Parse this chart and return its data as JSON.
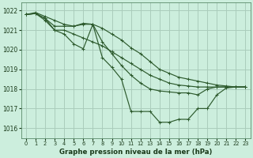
{
  "title": "Graphe pression niveau de la mer (hPa)",
  "background_color": "#cceedd",
  "grid_color": "#aaccbb",
  "line_color": "#2d5a2d",
  "xlim": [
    -0.5,
    23.5
  ],
  "ylim": [
    1015.5,
    1022.4
  ],
  "yticks": [
    1016,
    1017,
    1018,
    1019,
    1020,
    1021,
    1022
  ],
  "xticks": [
    0,
    1,
    2,
    3,
    4,
    5,
    6,
    7,
    8,
    9,
    10,
    11,
    12,
    13,
    14,
    15,
    16,
    17,
    18,
    19,
    20,
    21,
    22,
    23
  ],
  "series": [
    {
      "x": [
        0,
        1,
        2,
        3,
        4,
        5,
        6,
        7,
        8,
        9,
        10,
        11,
        12,
        13,
        14,
        15,
        16,
        17,
        18,
        19,
        20,
        21,
        22,
        23
      ],
      "y": [
        1021.8,
        1021.9,
        1021.7,
        1021.5,
        1021.3,
        1021.2,
        1021.3,
        1021.3,
        1021.1,
        1020.8,
        1020.5,
        1020.1,
        1019.8,
        1019.4,
        1019.0,
        1018.8,
        1018.6,
        1018.5,
        1018.4,
        1018.3,
        1018.2,
        1018.15,
        1018.1,
        1018.1
      ]
    },
    {
      "x": [
        0,
        1,
        2,
        3,
        4,
        5,
        6,
        7,
        8,
        9,
        10,
        11,
        12,
        13,
        14,
        15,
        16,
        17,
        18,
        19,
        20,
        21,
        22,
        23
      ],
      "y": [
        1021.8,
        1021.85,
        1021.6,
        1021.0,
        1021.0,
        1020.8,
        1020.6,
        1020.4,
        1020.2,
        1019.9,
        1019.6,
        1019.3,
        1019.0,
        1018.7,
        1018.5,
        1018.3,
        1018.2,
        1018.15,
        1018.1,
        1018.1,
        1018.1,
        1018.1,
        1018.1,
        1018.1
      ]
    },
    {
      "x": [
        0,
        1,
        2,
        3,
        4,
        5,
        6,
        7,
        8,
        9,
        10,
        11,
        12,
        13,
        14,
        15,
        16,
        17,
        18,
        19,
        20,
        21,
        22,
        23
      ],
      "y": [
        1021.8,
        1021.85,
        1021.6,
        1021.2,
        1021.2,
        1021.2,
        1021.35,
        1021.3,
        1020.4,
        1019.8,
        1019.2,
        1018.7,
        1018.3,
        1018.0,
        1017.9,
        1017.85,
        1017.8,
        1017.8,
        1017.7,
        1018.0,
        1018.1,
        1018.1,
        1018.1,
        1018.1
      ]
    },
    {
      "x": [
        0,
        1,
        2,
        3,
        4,
        5,
        6,
        7,
        8,
        9,
        10,
        11,
        12,
        13,
        14,
        15,
        16,
        17,
        18,
        19,
        20,
        21,
        22,
        23
      ],
      "y": [
        1021.8,
        1021.85,
        1021.5,
        1021.0,
        1020.8,
        1020.3,
        1020.05,
        1021.3,
        1019.6,
        1019.1,
        1018.5,
        1016.85,
        1016.85,
        1016.85,
        1016.3,
        1016.3,
        1016.45,
        1016.45,
        1017.0,
        1017.0,
        1017.7,
        1018.05,
        1018.1,
        1018.1
      ]
    }
  ]
}
